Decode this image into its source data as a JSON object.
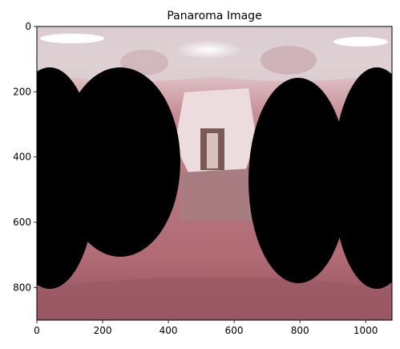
{
  "chart_data": {
    "type": "image",
    "title": "Panaroma Image",
    "xlim": [
      0,
      1080
    ],
    "ylim": [
      900,
      0
    ],
    "x_ticks": [
      0,
      200,
      400,
      600,
      800,
      1000
    ],
    "y_ticks": [
      0,
      200,
      400,
      600,
      800
    ],
    "grid": false,
    "legend": "none",
    "image_content": "equirectangular panorama of a corridor with pinkish tint, ceiling lights at top, two large black occlusion blobs on left and right",
    "colors": {
      "occlusion": "#000000",
      "floor": "#b07078",
      "ceiling": "#d8c8cc",
      "corridor": "#e8d8da"
    }
  }
}
